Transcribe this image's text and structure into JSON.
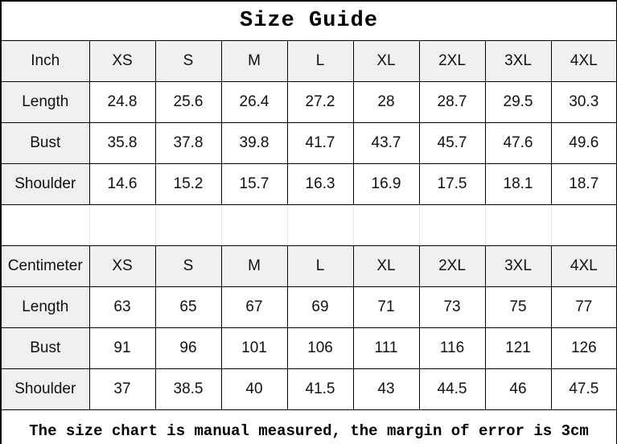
{
  "title": "Size Guide",
  "footer_note": "The size chart is manual measured, the margin of error is 3cm",
  "colors": {
    "header_bg": "#f0f0f0",
    "border": "#000000",
    "spacer_grid_lines": "#e6e6e6",
    "text": "#111111",
    "background": "#ffffff"
  },
  "chart_data": [
    {
      "type": "table",
      "title": "Size Guide",
      "unit": "Inch",
      "columns": [
        "Inch",
        "XS",
        "S",
        "M",
        "L",
        "XL",
        "2XL",
        "3XL",
        "4XL"
      ],
      "rows": [
        [
          "Length",
          "24.8",
          "25.6",
          "26.4",
          "27.2",
          "28",
          "28.7",
          "29.5",
          "30.3"
        ],
        [
          "Bust",
          "35.8",
          "37.8",
          "39.8",
          "41.7",
          "43.7",
          "45.7",
          "47.6",
          "49.6"
        ],
        [
          "Shoulder",
          "14.6",
          "15.2",
          "15.7",
          "16.3",
          "16.9",
          "17.5",
          "18.1",
          "18.7"
        ]
      ]
    },
    {
      "type": "table",
      "title": "Size Guide",
      "unit": "Centimeter",
      "columns": [
        "Centimeter",
        "XS",
        "S",
        "M",
        "L",
        "XL",
        "2XL",
        "3XL",
        "4XL"
      ],
      "rows": [
        [
          "Length",
          "63",
          "65",
          "67",
          "69",
          "71",
          "73",
          "75",
          "77"
        ],
        [
          "Bust",
          "91",
          "96",
          "101",
          "106",
          "111",
          "116",
          "121",
          "126"
        ],
        [
          "Shoulder",
          "37",
          "38.5",
          "40",
          "41.5",
          "43",
          "44.5",
          "46",
          "47.5"
        ]
      ]
    }
  ]
}
